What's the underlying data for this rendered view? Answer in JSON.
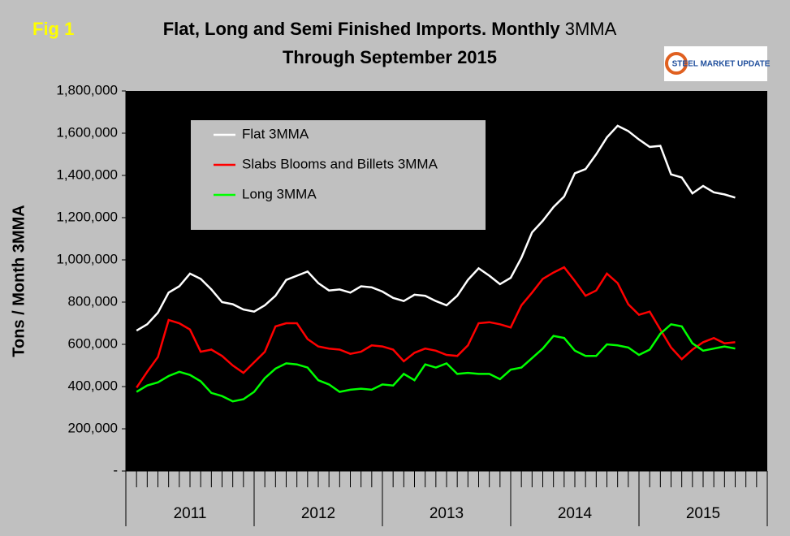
{
  "chart_data": {
    "type": "line",
    "figure_label": "Fig 1",
    "title": "Flat, Long and Semi Finished Imports. Monthly",
    "title_suffix": "3MMA",
    "subtitle": "Through September 2015",
    "logo": "STEEL MARKET UPDATE",
    "y_label": "Tons / Month 3MMA",
    "year_labels": [
      "2011",
      "2012",
      "2013",
      "2014",
      "2015"
    ],
    "ylim": [
      0,
      1800000
    ],
    "yticks": [
      {
        "value": 0,
        "label": "-"
      },
      {
        "value": 200000,
        "label": "200,000"
      },
      {
        "value": 400000,
        "label": "400,000"
      },
      {
        "value": 600000,
        "label": "600,000"
      },
      {
        "value": 800000,
        "label": "800,000"
      },
      {
        "value": 1000000,
        "label": "1,000,000"
      },
      {
        "value": 1200000,
        "label": "1,200,000"
      },
      {
        "value": 1400000,
        "label": "1,400,000"
      },
      {
        "value": 1600000,
        "label": "1,600,000"
      },
      {
        "value": 1800000,
        "label": "1,800,000"
      }
    ],
    "series": [
      {
        "name": "Flat 3MMA",
        "color": "#ffffff",
        "values": [
          665000,
          695000,
          750000,
          845000,
          875000,
          935000,
          910000,
          860000,
          800000,
          790000,
          765000,
          755000,
          785000,
          830000,
          905000,
          925000,
          945000,
          890000,
          855000,
          860000,
          845000,
          875000,
          870000,
          850000,
          820000,
          805000,
          835000,
          830000,
          805000,
          785000,
          830000,
          905000,
          960000,
          925000,
          885000,
          915000,
          1010000,
          1130000,
          1185000,
          1250000,
          1300000,
          1410000,
          1430000,
          1500000,
          1580000,
          1635000,
          1610000,
          1570000,
          1535000,
          1540000,
          1405000,
          1390000,
          1315000,
          1350000,
          1320000,
          1310000,
          1295000
        ]
      },
      {
        "name": "Slabs Blooms and Billets 3MMA",
        "color": "#ff0000",
        "values": [
          395000,
          470000,
          540000,
          715000,
          700000,
          670000,
          565000,
          575000,
          545000,
          500000,
          465000,
          515000,
          565000,
          685000,
          700000,
          700000,
          625000,
          590000,
          580000,
          575000,
          555000,
          565000,
          595000,
          590000,
          575000,
          520000,
          560000,
          580000,
          570000,
          550000,
          545000,
          595000,
          700000,
          705000,
          695000,
          680000,
          785000,
          845000,
          910000,
          940000,
          965000,
          900000,
          830000,
          855000,
          935000,
          890000,
          790000,
          740000,
          755000,
          670000,
          585000,
          530000,
          575000,
          610000,
          630000,
          605000,
          610000
        ]
      },
      {
        "name": "Long 3MMA",
        "color": "#00ff00",
        "values": [
          375000,
          405000,
          420000,
          450000,
          470000,
          455000,
          425000,
          370000,
          355000,
          330000,
          340000,
          375000,
          440000,
          485000,
          510000,
          505000,
          490000,
          430000,
          410000,
          375000,
          385000,
          390000,
          385000,
          410000,
          405000,
          460000,
          430000,
          505000,
          490000,
          510000,
          460000,
          465000,
          460000,
          460000,
          435000,
          480000,
          490000,
          535000,
          580000,
          640000,
          630000,
          570000,
          545000,
          545000,
          600000,
          595000,
          585000,
          550000,
          575000,
          650000,
          695000,
          685000,
          605000,
          570000,
          580000,
          590000,
          580000
        ]
      }
    ]
  }
}
